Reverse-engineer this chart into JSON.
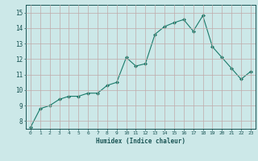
{
  "x": [
    0,
    1,
    2,
    3,
    4,
    5,
    6,
    7,
    8,
    9,
    10,
    11,
    12,
    13,
    14,
    15,
    16,
    17,
    18,
    19,
    20,
    21,
    22,
    23
  ],
  "y": [
    7.6,
    8.8,
    9.0,
    9.4,
    9.6,
    9.6,
    9.8,
    9.8,
    10.3,
    10.5,
    12.1,
    11.55,
    11.7,
    13.6,
    14.1,
    14.35,
    14.55,
    13.8,
    14.8,
    12.8,
    12.1,
    11.4,
    10.7,
    11.2
  ],
  "xlabel": "Humidex (Indice chaleur)",
  "ylim": [
    7.5,
    15.5
  ],
  "xlim": [
    -0.5,
    23.5
  ],
  "yticks": [
    8,
    9,
    10,
    11,
    12,
    13,
    14,
    15
  ],
  "xticks": [
    0,
    1,
    2,
    3,
    4,
    5,
    6,
    7,
    8,
    9,
    10,
    11,
    12,
    13,
    14,
    15,
    16,
    17,
    18,
    19,
    20,
    21,
    22,
    23
  ],
  "line_color": "#1a7a6a",
  "marker_color": "#1a7a6a",
  "bg_color": "#cce8e8",
  "grid_color": "#c0aaaa",
  "label_color": "#1a5555",
  "tick_color": "#1a5555"
}
